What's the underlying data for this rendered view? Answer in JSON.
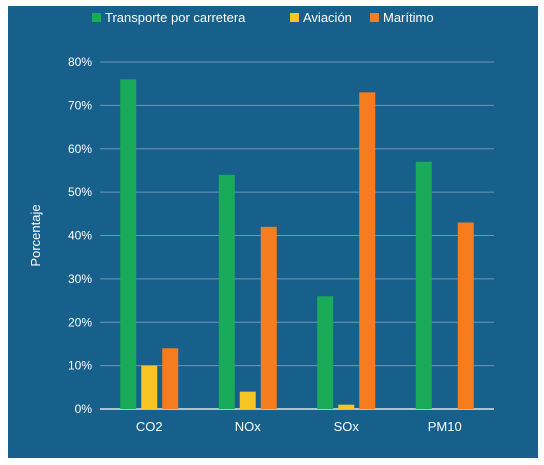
{
  "colors": {
    "background": "#17608c",
    "gridline": "#6d97b4",
    "axis": "#ffffff"
  },
  "chart_data": {
    "type": "bar",
    "title": "",
    "xlabel": "",
    "ylabel": "Porcentaje",
    "ylim": [
      0,
      80
    ],
    "yticks": [
      "0%",
      "10%",
      "20%",
      "30%",
      "40%",
      "50%",
      "60%",
      "70%",
      "80%"
    ],
    "grid": true,
    "legend_position": "top",
    "categories": [
      "CO2",
      "NOx",
      "SOx",
      "PM10"
    ],
    "series": [
      {
        "name": "Transporte por carretera",
        "color": "#1aab5a",
        "values": [
          76,
          54,
          26,
          57
        ]
      },
      {
        "name": "Aviación",
        "color": "#f7c623",
        "values": [
          10,
          4,
          1,
          0
        ]
      },
      {
        "name": "Marítimo",
        "color": "#f57c1f",
        "values": [
          14,
          42,
          73,
          43
        ]
      }
    ]
  }
}
